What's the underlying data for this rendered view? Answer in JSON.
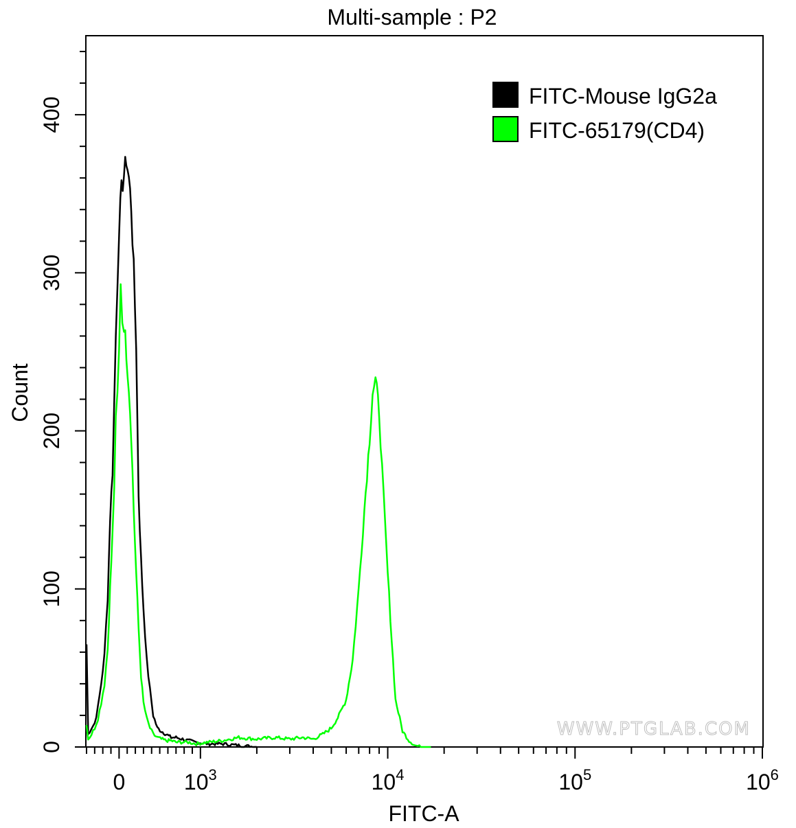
{
  "chart_data": {
    "type": "line",
    "title": "Multi-sample : P2",
    "xlabel": "FITC-A",
    "ylabel": "Count",
    "xscale": "biexponential",
    "ylim": [
      0,
      450
    ],
    "x_ticks": [
      {
        "value": 0,
        "label": "0",
        "sup": ""
      },
      {
        "value": 1000,
        "label": "10",
        "sup": "3"
      },
      {
        "value": 10000,
        "label": "10",
        "sup": "4"
      },
      {
        "value": 100000,
        "label": "10",
        "sup": "5"
      },
      {
        "value": 1000000,
        "label": "10",
        "sup": "6"
      }
    ],
    "y_ticks": [
      0,
      100,
      200,
      300,
      400
    ],
    "legend_position": "top-right",
    "watermark": "WWW.PTGLAB.COM",
    "series": [
      {
        "name": "FITC-Mouse IgG2a",
        "color": "#000000",
        "x": [
          -400,
          -380,
          -340,
          -300,
          -260,
          -220,
          -180,
          -140,
          -110,
          -80,
          -40,
          0,
          30,
          60,
          90,
          120,
          150,
          180,
          210,
          240,
          270,
          300,
          340,
          380,
          420,
          470,
          520,
          580,
          640,
          700,
          780,
          850,
          950,
          1100,
          1300,
          1600,
          2000
        ],
        "y": [
          65,
          8,
          12,
          15,
          25,
          40,
          58,
          95,
          145,
          175,
          260,
          330,
          352,
          362,
          372,
          360,
          342,
          302,
          255,
          160,
          118,
          88,
          55,
          36,
          20,
          12,
          10,
          8,
          6,
          6,
          5,
          4,
          3,
          2,
          2,
          1,
          0
        ]
      },
      {
        "name": "FITC-65179(CD4)",
        "color": "#00ff00",
        "x": [
          -400,
          -380,
          -340,
          -300,
          -260,
          -220,
          -180,
          -140,
          -110,
          -80,
          -60,
          -40,
          -20,
          0,
          20,
          40,
          60,
          90,
          120,
          150,
          180,
          210,
          240,
          270,
          300,
          340,
          380,
          420,
          470,
          520,
          580,
          640,
          700,
          780,
          850,
          950,
          1100,
          1300,
          1600,
          2000,
          2500,
          3000,
          3500,
          4000,
          4500,
          5000,
          5500,
          6000,
          6500,
          7000,
          7500,
          8000,
          8300,
          8600,
          9000,
          9500,
          10000,
          10500,
          11000,
          12000,
          13000,
          14000,
          15000,
          17000
        ],
        "y": [
          15,
          5,
          8,
          12,
          18,
          28,
          40,
          62,
          100,
          135,
          165,
          205,
          222,
          250,
          296,
          270,
          268,
          250,
          228,
          198,
          150,
          110,
          75,
          45,
          28,
          18,
          12,
          8,
          6,
          5,
          4,
          4,
          3,
          3,
          3,
          2,
          3,
          4,
          6,
          5,
          6,
          5,
          6,
          5,
          8,
          12,
          20,
          30,
          55,
          100,
          150,
          195,
          225,
          232,
          212,
          158,
          110,
          68,
          30,
          10,
          4,
          1,
          0,
          0
        ]
      }
    ]
  }
}
